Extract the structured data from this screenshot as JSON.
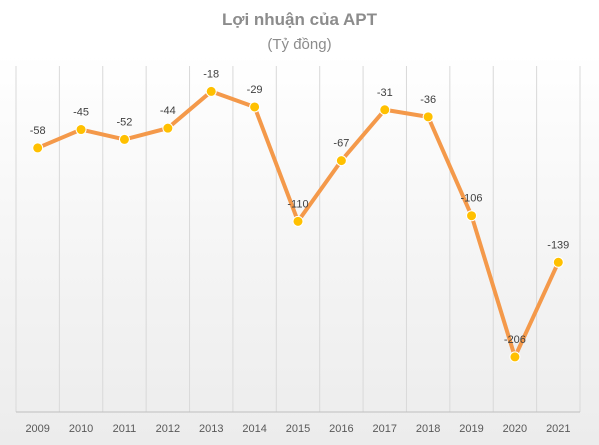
{
  "chart_data": {
    "type": "line",
    "title": "Lợi nhuận của APT",
    "subtitle": "(Tỷ đồng)",
    "x": [
      "2009",
      "2010",
      "2011",
      "2012",
      "2013",
      "2014",
      "2015",
      "2016",
      "2017",
      "2018",
      "2019",
      "2020",
      "2021"
    ],
    "series": [
      {
        "values": [
          -58,
          -45,
          -52,
          -44,
          -18,
          -29,
          -110,
          -67,
          -31,
          -36,
          -106,
          -206,
          -139
        ]
      }
    ],
    "data_labels": [
      "-58",
      "-45",
      "-52",
      "-44",
      "-18",
      "-29",
      "-110",
      "-67",
      "-31",
      "-36",
      "-106",
      "-206",
      "-139"
    ],
    "ylim": [
      -245,
      0
    ],
    "grid": "vertical",
    "legend": "none",
    "colors": {
      "line": "#f4994a",
      "marker": "#ffc000",
      "label": "#404040"
    }
  }
}
